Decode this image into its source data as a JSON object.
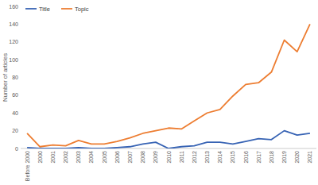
{
  "chart_data": {
    "type": "line",
    "y_label": "Number of articles",
    "categories": [
      "Before 2000",
      "2000",
      "2001",
      "2002",
      "2003",
      "2004",
      "2005",
      "2006",
      "2007",
      "2008",
      "2009",
      "2010",
      "2011",
      "2012",
      "2013",
      "2014",
      "2015",
      "2016",
      "2017",
      "2018",
      "2019",
      "2020",
      "2021"
    ],
    "series": [
      {
        "name": "Title",
        "color": "#3763b4",
        "values": [
          1,
          0,
          0,
          0,
          1,
          0,
          0,
          1,
          2,
          5,
          7,
          0,
          2,
          3,
          7,
          7,
          5,
          8,
          11,
          10,
          20,
          15,
          17
        ]
      },
      {
        "name": "Topic",
        "color": "#ed7d31",
        "values": [
          17,
          2,
          4,
          3,
          9,
          5,
          5,
          8,
          12,
          17,
          20,
          23,
          22,
          31,
          40,
          44,
          59,
          72,
          74,
          86,
          122,
          109,
          140
        ]
      }
    ],
    "ylim": [
      0,
      160
    ],
    "yticks": [
      0,
      20,
      40,
      60,
      80,
      100,
      120,
      140,
      160
    ],
    "grid": false,
    "legend": "upper left"
  }
}
